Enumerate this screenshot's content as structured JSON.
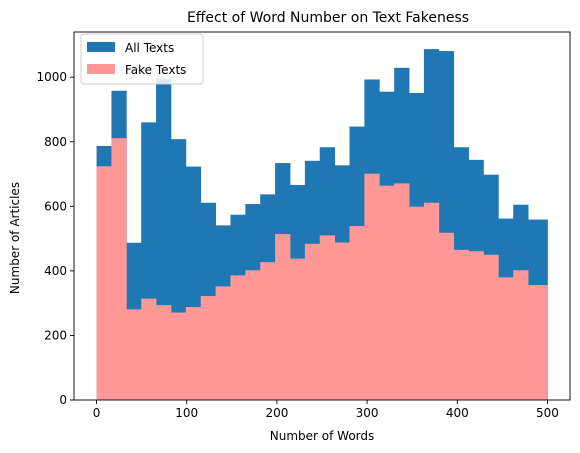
{
  "chart_data": {
    "type": "bar",
    "title": "Effect of Word Number on Text Fakeness",
    "xlabel": "Number of Words",
    "ylabel": "Number of Articles",
    "xlim": [
      -25,
      525
    ],
    "ylim": [
      0,
      1140
    ],
    "xticks": [
      0,
      100,
      200,
      300,
      400,
      500
    ],
    "yticks": [
      0,
      200,
      400,
      600,
      800,
      1000
    ],
    "bin_edges": [
      0,
      16.5,
      33,
      49.5,
      66,
      82.5,
      99,
      115.5,
      132,
      148.5,
      165,
      181.5,
      198,
      214.5,
      231,
      247.5,
      264,
      280.5,
      297,
      313.5,
      330,
      346.5,
      363,
      379.5,
      396,
      412.5,
      429,
      445.5,
      462,
      478.5,
      495,
      500
    ],
    "legend_position": "top-left",
    "series": [
      {
        "name": "All Texts",
        "color": "#1f77b4",
        "values": [
          787,
          958,
          487,
          860,
          995,
          808,
          723,
          611,
          541,
          574,
          607,
          637,
          734,
          666,
          741,
          783,
          727,
          847,
          993,
          955,
          1029,
          951,
          1087,
          1081,
          783,
          744,
          698,
          562,
          605,
          559,
          559
        ]
      },
      {
        "name": "Fake Texts",
        "color": "#ff9896",
        "values": [
          724,
          811,
          281,
          314,
          294,
          271,
          288,
          322,
          352,
          386,
          402,
          427,
          514,
          438,
          484,
          510,
          488,
          539,
          701,
          664,
          671,
          599,
          611,
          518,
          465,
          461,
          450,
          380,
          402,
          356,
          356
        ]
      }
    ]
  }
}
